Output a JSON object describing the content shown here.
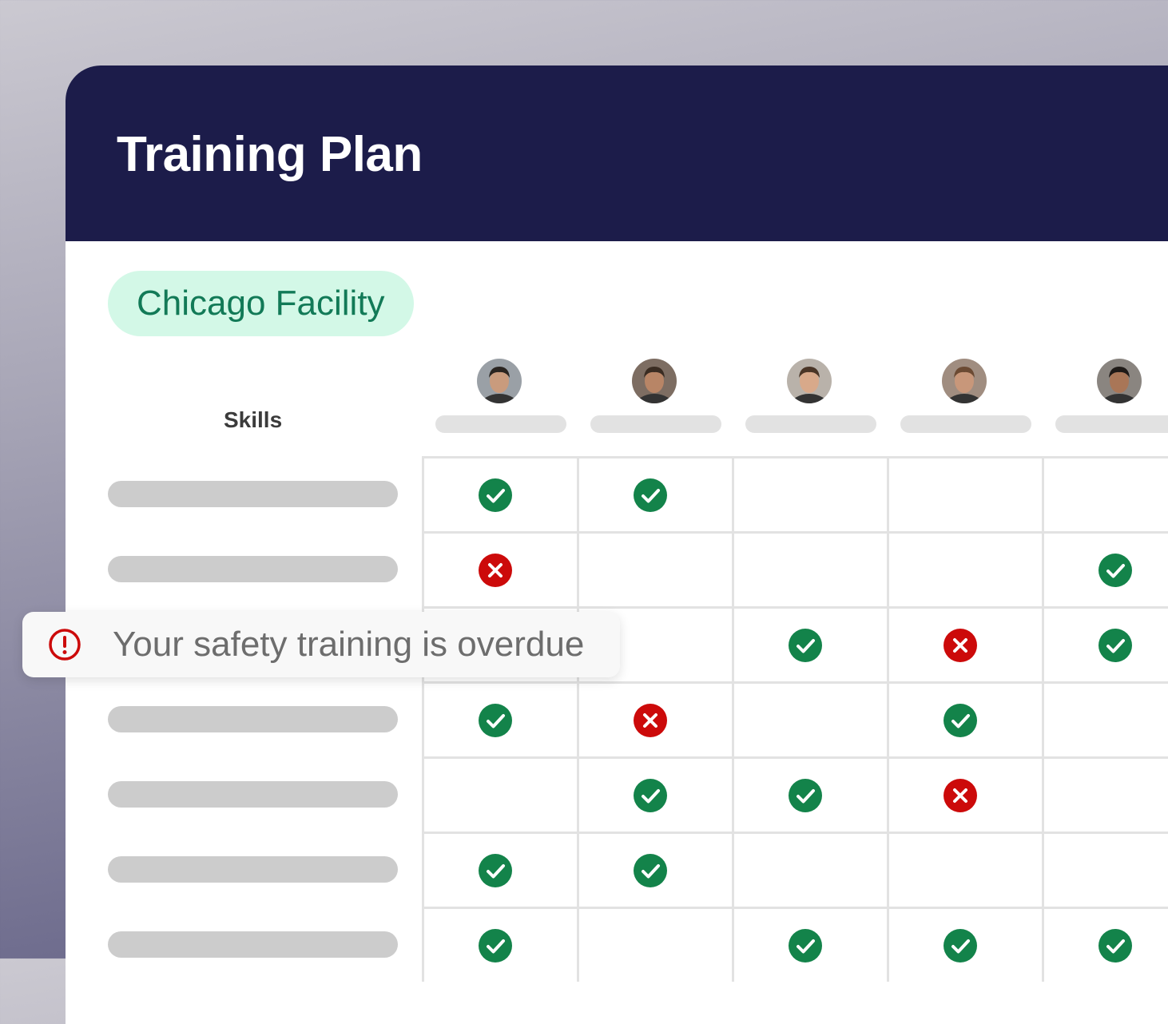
{
  "header": {
    "title": "Training Plan"
  },
  "location": {
    "label": "Chicago Facility"
  },
  "matrix": {
    "skills_label": "Skills",
    "people": [
      {
        "avatar": "avatar-1"
      },
      {
        "avatar": "avatar-2"
      },
      {
        "avatar": "avatar-3"
      },
      {
        "avatar": "avatar-4"
      },
      {
        "avatar": "avatar-5"
      }
    ],
    "rows": [
      [
        "check",
        "check",
        "",
        "",
        ""
      ],
      [
        "cross",
        "",
        "",
        "",
        "check"
      ],
      [
        "",
        "",
        "check",
        "cross",
        "check"
      ],
      [
        "check",
        "cross",
        "",
        "check",
        ""
      ],
      [
        "",
        "check",
        "check",
        "cross",
        ""
      ],
      [
        "check",
        "check",
        "",
        "",
        ""
      ],
      [
        "check",
        "",
        "check",
        "check",
        "check"
      ]
    ]
  },
  "toast": {
    "message": "Your safety training is overdue",
    "icon": "alert-circle-icon"
  },
  "colors": {
    "header": "#1c1c4a",
    "check": "#13834a",
    "cross": "#cc0a0a",
    "pill_bg": "#d3f8e7",
    "pill_text": "#127a57"
  }
}
